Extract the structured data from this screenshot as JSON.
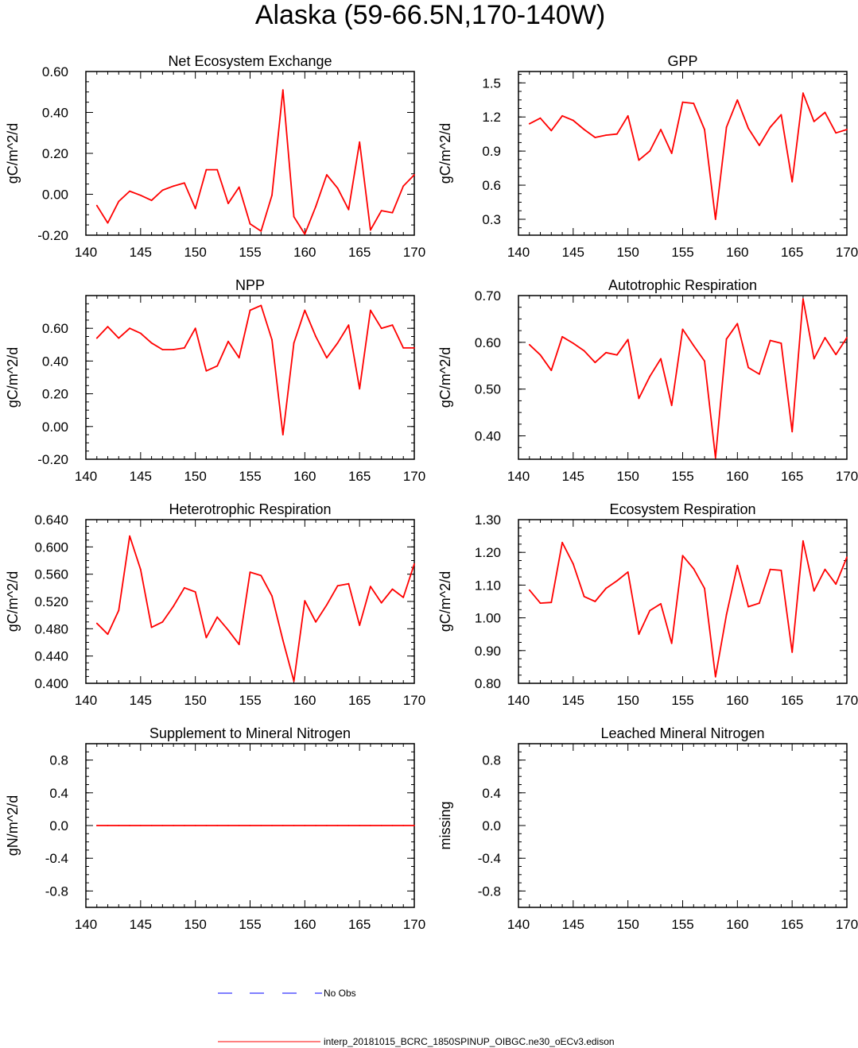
{
  "figure_title": "Alaska (59-66.5N,170-140W)",
  "legend": {
    "obs_label": "No Obs",
    "obs_color": "#0000ff",
    "model_label": "interp_20181015_BCRC_1850SPINUP_OIBGC.ne30_oECv3.edison",
    "model_color": "#ff0000"
  },
  "chart_data": [
    {
      "type": "line",
      "title": "Net Ecosystem Exchange",
      "ylabel": "gC/m^2/d",
      "xlim": [
        140,
        170
      ],
      "ylim": [
        -0.2,
        0.6
      ],
      "xticks": [
        140,
        145,
        150,
        155,
        160,
        165,
        170
      ],
      "xtick_labels": [
        "140",
        "145",
        "150",
        "155",
        "160",
        "165",
        "170"
      ],
      "yticks": [
        -0.2,
        0.0,
        0.2,
        0.4,
        0.6
      ],
      "ytick_labels": [
        "-0.20",
        "0.00",
        "0.20",
        "0.40",
        "0.60"
      ],
      "x": [
        141,
        142,
        143,
        144,
        145,
        146,
        147,
        148,
        149,
        150,
        151,
        152,
        153,
        154,
        155,
        156,
        157,
        158,
        159,
        160,
        161,
        162,
        163,
        164,
        165,
        166,
        167,
        168,
        169,
        170
      ],
      "values": [
        -0.055,
        -0.14,
        -0.035,
        0.015,
        -0.005,
        -0.03,
        0.02,
        0.04,
        0.055,
        -0.07,
        0.12,
        0.12,
        -0.045,
        0.035,
        -0.145,
        -0.18,
        -0.005,
        0.51,
        -0.11,
        -0.195,
        -0.06,
        0.095,
        0.03,
        -0.075,
        0.255,
        -0.175,
        -0.08,
        -0.09,
        0.04,
        0.095
      ]
    },
    {
      "type": "line",
      "title": "GPP",
      "ylabel": "gC/m^2/d",
      "xlim": [
        140,
        170
      ],
      "ylim": [
        0.16,
        1.6
      ],
      "xticks": [
        140,
        145,
        150,
        155,
        160,
        165,
        170
      ],
      "xtick_labels": [
        "140",
        "145",
        "150",
        "155",
        "160",
        "165",
        "170"
      ],
      "yticks": [
        0.3,
        0.6,
        0.9,
        1.2,
        1.5
      ],
      "ytick_labels": [
        "0.3",
        "0.6",
        "0.9",
        "1.2",
        "1.5"
      ],
      "x": [
        141,
        142,
        143,
        144,
        145,
        146,
        147,
        148,
        149,
        150,
        151,
        152,
        153,
        154,
        155,
        156,
        157,
        158,
        159,
        160,
        161,
        162,
        163,
        164,
        165,
        166,
        167,
        168,
        169,
        170
      ],
      "values": [
        1.14,
        1.19,
        1.08,
        1.21,
        1.17,
        1.09,
        1.02,
        1.04,
        1.05,
        1.21,
        0.82,
        0.9,
        1.09,
        0.88,
        1.33,
        1.32,
        1.09,
        0.3,
        1.11,
        1.35,
        1.1,
        0.95,
        1.11,
        1.22,
        0.63,
        1.41,
        1.16,
        1.24,
        1.06,
        1.09
      ]
    },
    {
      "type": "line",
      "title": "NPP",
      "ylabel": "gC/m^2/d",
      "xlim": [
        140,
        170
      ],
      "ylim": [
        -0.2,
        0.8
      ],
      "xticks": [
        140,
        145,
        150,
        155,
        160,
        165,
        170
      ],
      "xtick_labels": [
        "140",
        "145",
        "150",
        "155",
        "160",
        "165",
        "170"
      ],
      "yticks": [
        -0.2,
        0.0,
        0.2,
        0.4,
        0.6
      ],
      "ytick_labels": [
        "-0.20",
        "0.00",
        "0.20",
        "0.40",
        "0.60"
      ],
      "x": [
        141,
        142,
        143,
        144,
        145,
        146,
        147,
        148,
        149,
        150,
        151,
        152,
        153,
        154,
        155,
        156,
        157,
        158,
        159,
        160,
        161,
        162,
        163,
        164,
        165,
        166,
        167,
        168,
        169,
        170
      ],
      "values": [
        0.54,
        0.61,
        0.54,
        0.6,
        0.57,
        0.51,
        0.47,
        0.47,
        0.48,
        0.6,
        0.34,
        0.37,
        0.52,
        0.42,
        0.71,
        0.74,
        0.53,
        -0.05,
        0.51,
        0.71,
        0.55,
        0.42,
        0.51,
        0.62,
        0.23,
        0.71,
        0.6,
        0.62,
        0.48,
        0.48
      ]
    },
    {
      "type": "line",
      "title": "Autotrophic Respiration",
      "ylabel": "gC/m^2/d",
      "xlim": [
        140,
        170
      ],
      "ylim": [
        0.35,
        0.7
      ],
      "xticks": [
        140,
        145,
        150,
        155,
        160,
        165,
        170
      ],
      "xtick_labels": [
        "140",
        "145",
        "150",
        "155",
        "160",
        "165",
        "170"
      ],
      "yticks": [
        0.4,
        0.5,
        0.6,
        0.7
      ],
      "ytick_labels": [
        "0.40",
        "0.50",
        "0.60",
        "0.70"
      ],
      "x": [
        141,
        142,
        143,
        144,
        145,
        146,
        147,
        148,
        149,
        150,
        151,
        152,
        153,
        154,
        155,
        156,
        157,
        158,
        159,
        160,
        161,
        162,
        163,
        164,
        165,
        166,
        167,
        168,
        169,
        170
      ],
      "values": [
        0.595,
        0.573,
        0.54,
        0.612,
        0.598,
        0.582,
        0.557,
        0.578,
        0.573,
        0.606,
        0.48,
        0.527,
        0.565,
        0.465,
        0.628,
        0.593,
        0.56,
        0.353,
        0.607,
        0.64,
        0.546,
        0.532,
        0.604,
        0.598,
        0.409,
        0.693,
        0.565,
        0.61,
        0.574,
        0.61
      ]
    },
    {
      "type": "line",
      "title": "Heterotrophic Respiration",
      "ylabel": "gC/m^2/d",
      "xlim": [
        140,
        170
      ],
      "ylim": [
        0.4,
        0.64
      ],
      "xticks": [
        140,
        145,
        150,
        155,
        160,
        165,
        170
      ],
      "xtick_labels": [
        "140",
        "145",
        "150",
        "155",
        "160",
        "165",
        "170"
      ],
      "yticks": [
        0.4,
        0.44,
        0.48,
        0.52,
        0.56,
        0.6,
        0.64
      ],
      "ytick_labels": [
        "0.400",
        "0.440",
        "0.480",
        "0.520",
        "0.560",
        "0.600",
        "0.640"
      ],
      "x": [
        141,
        142,
        143,
        144,
        145,
        146,
        147,
        148,
        149,
        150,
        151,
        152,
        153,
        154,
        155,
        156,
        157,
        158,
        159,
        160,
        161,
        162,
        163,
        164,
        165,
        166,
        167,
        168,
        169,
        170
      ],
      "values": [
        0.488,
        0.472,
        0.507,
        0.616,
        0.567,
        0.482,
        0.49,
        0.513,
        0.54,
        0.534,
        0.467,
        0.497,
        0.478,
        0.457,
        0.563,
        0.558,
        0.528,
        0.463,
        0.403,
        0.521,
        0.49,
        0.515,
        0.543,
        0.546,
        0.485,
        0.542,
        0.518,
        0.538,
        0.526,
        0.575
      ]
    },
    {
      "type": "line",
      "title": "Ecosystem Respiration",
      "ylabel": "gC/m^2/d",
      "xlim": [
        140,
        170
      ],
      "ylim": [
        0.8,
        1.3
      ],
      "xticks": [
        140,
        145,
        150,
        155,
        160,
        165,
        170
      ],
      "xtick_labels": [
        "140",
        "145",
        "150",
        "155",
        "160",
        "165",
        "170"
      ],
      "yticks": [
        0.8,
        0.9,
        1.0,
        1.1,
        1.2,
        1.3
      ],
      "ytick_labels": [
        "0.80",
        "0.90",
        "1.00",
        "1.10",
        "1.20",
        "1.30"
      ],
      "x": [
        141,
        142,
        143,
        144,
        145,
        146,
        147,
        148,
        149,
        150,
        151,
        152,
        153,
        154,
        155,
        156,
        157,
        158,
        159,
        160,
        161,
        162,
        163,
        164,
        165,
        166,
        167,
        168,
        169,
        170
      ],
      "values": [
        1.085,
        1.045,
        1.047,
        1.23,
        1.165,
        1.065,
        1.05,
        1.09,
        1.113,
        1.14,
        0.95,
        1.022,
        1.043,
        0.922,
        1.19,
        1.15,
        1.09,
        0.82,
        1.01,
        1.16,
        1.034,
        1.045,
        1.148,
        1.145,
        0.895,
        1.235,
        1.082,
        1.148,
        1.103,
        1.185
      ]
    },
    {
      "type": "line",
      "title": "Supplement to Mineral Nitrogen",
      "ylabel": "gN/m^2/d",
      "xlim": [
        140,
        170
      ],
      "ylim": [
        -1.0,
        1.0
      ],
      "xticks": [
        140,
        145,
        150,
        155,
        160,
        165,
        170
      ],
      "xtick_labels": [
        "140",
        "145",
        "150",
        "155",
        "160",
        "165",
        "170"
      ],
      "yticks": [
        -0.8,
        -0.4,
        0.0,
        0.4,
        0.8
      ],
      "ytick_labels": [
        "-0.8",
        "-0.4",
        "0.0",
        "0.4",
        "0.8"
      ],
      "x": [
        141,
        142,
        143,
        144,
        145,
        146,
        147,
        148,
        149,
        150,
        151,
        152,
        153,
        154,
        155,
        156,
        157,
        158,
        159,
        160,
        161,
        162,
        163,
        164,
        165,
        166,
        167,
        168,
        169,
        170
      ],
      "values": [
        0,
        0,
        0,
        0,
        0,
        0,
        0,
        0,
        0,
        0,
        0,
        0,
        0,
        0,
        0,
        0,
        0,
        0,
        0,
        0,
        0,
        0,
        0,
        0,
        0,
        0,
        0,
        0,
        0,
        0
      ]
    },
    {
      "type": "line",
      "title": "Leached Mineral Nitrogen",
      "ylabel": "missing",
      "xlim": [
        140,
        170
      ],
      "ylim": [
        -1.0,
        1.0
      ],
      "xticks": [
        140,
        145,
        150,
        155,
        160,
        165,
        170
      ],
      "xtick_labels": [
        "140",
        "145",
        "150",
        "155",
        "160",
        "165",
        "170"
      ],
      "yticks": [
        -0.8,
        -0.4,
        0.0,
        0.4,
        0.8
      ],
      "ytick_labels": [
        "-0.8",
        "-0.4",
        "0.0",
        "0.4",
        "0.8"
      ],
      "x": [],
      "values": []
    }
  ]
}
